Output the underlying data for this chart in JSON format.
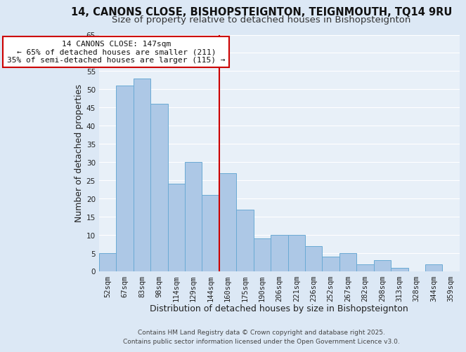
{
  "title": "14, CANONS CLOSE, BISHOPSTEIGNTON, TEIGNMOUTH, TQ14 9RU",
  "subtitle": "Size of property relative to detached houses in Bishopsteignton",
  "xlabel": "Distribution of detached houses by size in Bishopsteignton",
  "ylabel": "Number of detached properties",
  "categories": [
    "52sqm",
    "67sqm",
    "83sqm",
    "98sqm",
    "114sqm",
    "129sqm",
    "144sqm",
    "160sqm",
    "175sqm",
    "190sqm",
    "206sqm",
    "221sqm",
    "236sqm",
    "252sqm",
    "267sqm",
    "282sqm",
    "298sqm",
    "313sqm",
    "328sqm",
    "344sqm",
    "359sqm"
  ],
  "values": [
    5,
    51,
    53,
    46,
    24,
    30,
    21,
    27,
    17,
    9,
    10,
    10,
    7,
    4,
    5,
    2,
    3,
    1,
    0,
    2,
    0
  ],
  "bar_color": "#adc8e6",
  "bar_edge_color": "#6aaad4",
  "vline_x_index": 6,
  "vline_color": "#cc0000",
  "ylim": [
    0,
    65
  ],
  "yticks": [
    0,
    5,
    10,
    15,
    20,
    25,
    30,
    35,
    40,
    45,
    50,
    55,
    60,
    65
  ],
  "annotation_title": "14 CANONS CLOSE: 147sqm",
  "annotation_line1": "← 65% of detached houses are smaller (211)",
  "annotation_line2": "35% of semi-detached houses are larger (115) →",
  "annotation_box_facecolor": "#ffffff",
  "annotation_box_edgecolor": "#cc0000",
  "footer_line1": "Contains HM Land Registry data © Crown copyright and database right 2025.",
  "footer_line2": "Contains public sector information licensed under the Open Government Licence v3.0.",
  "background_color": "#dce8f5",
  "plot_background_color": "#e8f0f8",
  "grid_color": "#ffffff",
  "title_fontsize": 10.5,
  "subtitle_fontsize": 9.5,
  "axis_label_fontsize": 9,
  "tick_fontsize": 7.5,
  "annotation_fontsize": 8,
  "footer_fontsize": 6.5
}
